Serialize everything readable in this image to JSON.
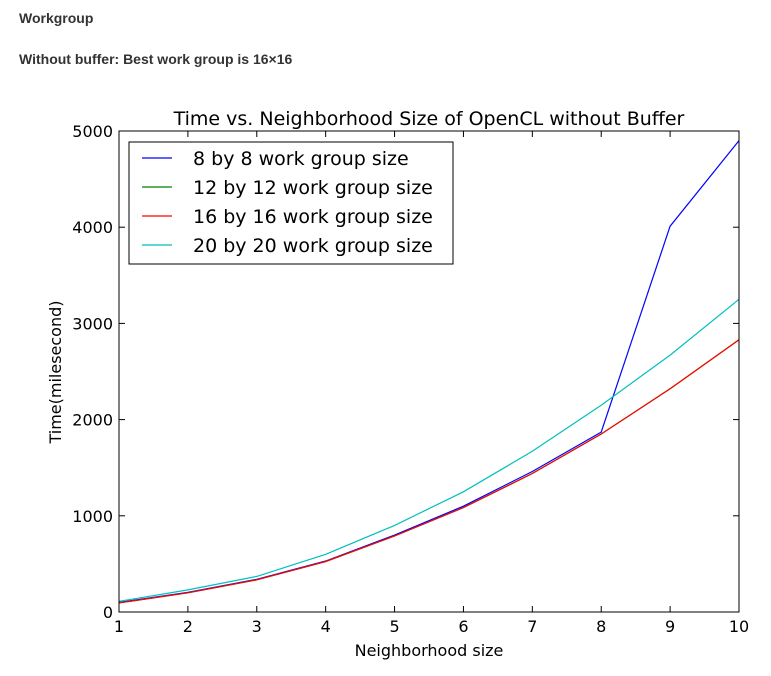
{
  "page": {
    "heading": "Workgroup",
    "subheading": "Without buffer: Best work group is 16×16"
  },
  "chart_data": {
    "type": "line",
    "title": "Time vs. Neighborhood Size of OpenCL without Buffer",
    "xlabel": "Neighborhood size",
    "ylabel": "Time(milesecond)",
    "xlim": [
      1,
      10
    ],
    "ylim": [
      0,
      5000
    ],
    "xticks": [
      1,
      2,
      3,
      4,
      5,
      6,
      7,
      8,
      9,
      10
    ],
    "yticks": [
      0,
      1000,
      2000,
      3000,
      4000,
      5000
    ],
    "grid": false,
    "legend_position": "upper-left",
    "x": [
      1,
      2,
      3,
      4,
      5,
      6,
      7,
      8,
      9,
      10
    ],
    "series": [
      {
        "name": "8 by 8 work group size",
        "color": "#0000ff",
        "values": [
          100,
          205,
          340,
          530,
          800,
          1100,
          1460,
          1870,
          4010,
          4900
        ]
      },
      {
        "name": "12 by 12 work group size",
        "color": "#008000",
        "values": [
          95,
          200,
          335,
          525,
          790,
          1085,
          1440,
          1850,
          2320,
          2830
        ]
      },
      {
        "name": "16 by 16 work group size",
        "color": "#ff0000",
        "values": [
          95,
          200,
          335,
          525,
          790,
          1085,
          1440,
          1850,
          2320,
          2830
        ]
      },
      {
        "name": "20 by 20 work group size",
        "color": "#00bfbf",
        "values": [
          110,
          230,
          370,
          600,
          900,
          1250,
          1670,
          2150,
          2670,
          3250
        ]
      }
    ]
  }
}
